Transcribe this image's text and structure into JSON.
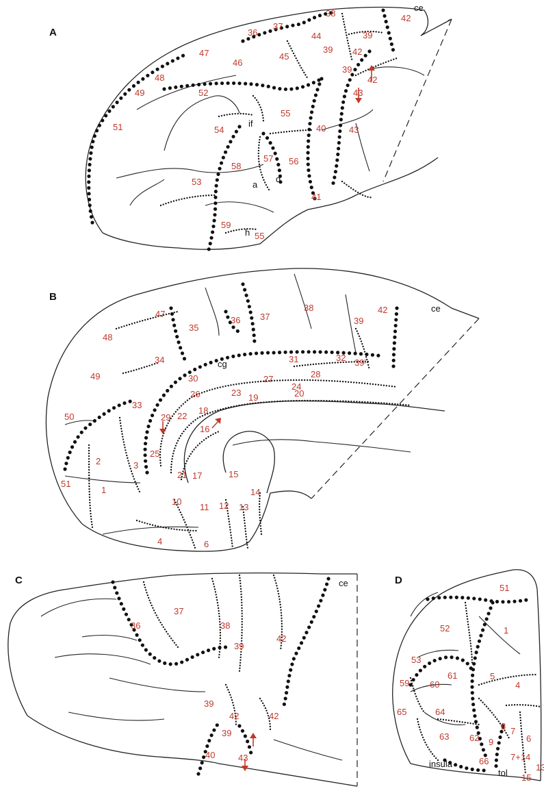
{
  "panels": [
    {
      "id": "A",
      "label": "A",
      "numbers": [
        "38",
        "36",
        "37",
        "42",
        "44",
        "39",
        "47",
        "45",
        "39",
        "42",
        "48",
        "46",
        "39",
        "42",
        "49",
        "52",
        "43",
        "51",
        "55",
        "54",
        "40",
        "43",
        "57",
        "56",
        "58",
        "53",
        "41",
        "59",
        "55"
      ],
      "letters": [
        "ce",
        "if",
        "a",
        "d",
        "h"
      ]
    },
    {
      "id": "B",
      "label": "B",
      "numbers": [
        "47",
        "36",
        "37",
        "38",
        "39",
        "42",
        "35",
        "48",
        "34",
        "31",
        "32",
        "39ᴵ",
        "49",
        "30",
        "27",
        "28",
        "26",
        "23",
        "19",
        "24",
        "20",
        "33",
        "29",
        "22",
        "18",
        "16",
        "50",
        "25",
        "2",
        "3",
        "21",
        "17",
        "15",
        "14",
        "51",
        "1",
        "10",
        "11",
        "12",
        "13",
        "4",
        "6"
      ],
      "letters": [
        "ce",
        "cg"
      ]
    },
    {
      "id": "C",
      "label": "C",
      "numbers": [
        "37",
        "38",
        "36",
        "42",
        "39",
        "39",
        "42",
        "42",
        "39",
        "40",
        "43"
      ],
      "letters": [
        "ce"
      ]
    },
    {
      "id": "D",
      "label": "D",
      "numbers": [
        "51",
        "52",
        "1",
        "53",
        "61",
        "5",
        "4",
        "59",
        "60",
        "65",
        "64",
        "8",
        "7",
        "62",
        "6",
        "63",
        "9",
        "7+14",
        "66",
        "13",
        "15"
      ],
      "letters": [
        "insula",
        "tol"
      ]
    }
  ],
  "colors": {
    "area_numbers": "#c0392b",
    "lines": "#222222"
  }
}
